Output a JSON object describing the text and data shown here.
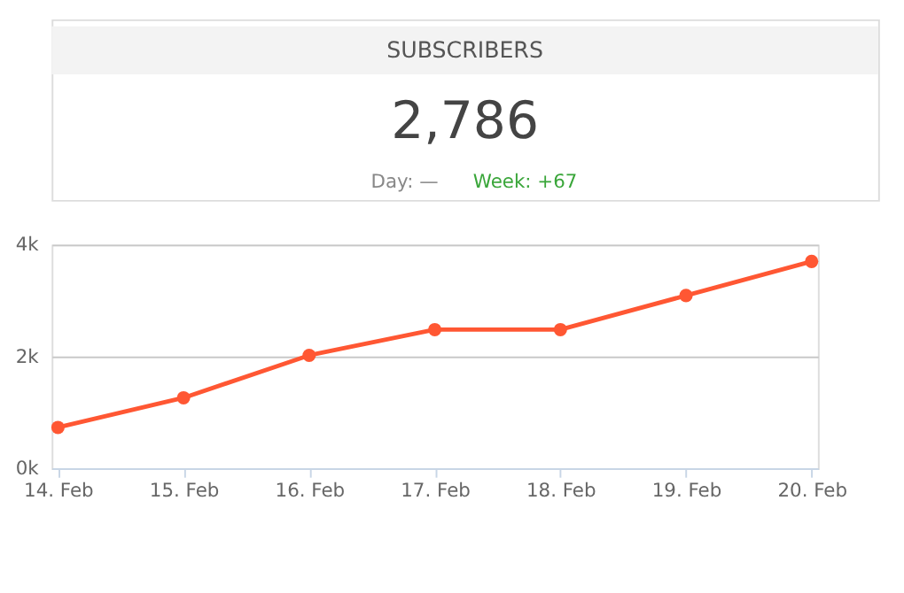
{
  "chart_data": {
    "type": "line",
    "title": "SUBSCRIBERS",
    "subtitle": "2,786",
    "annotations": [
      "Day: —",
      "Week: +67"
    ],
    "categories": [
      "14. Feb",
      "15. Feb",
      "16. Feb",
      "17. Feb",
      "18. Feb",
      "19. Feb",
      "20. Feb"
    ],
    "series": [
      {
        "color": "#ff5733",
        "values": [
          730,
          1260,
          2020,
          2480,
          2480,
          3090,
          3700
        ]
      }
    ],
    "ylim": [
      0,
      4000
    ],
    "yticks": [
      {
        "value": 0,
        "label": "0k"
      },
      {
        "value": 2000,
        "label": "2k"
      },
      {
        "value": 4000,
        "label": "4k"
      }
    ],
    "grid": "y",
    "marker": "circle",
    "line_style": "solid"
  }
}
